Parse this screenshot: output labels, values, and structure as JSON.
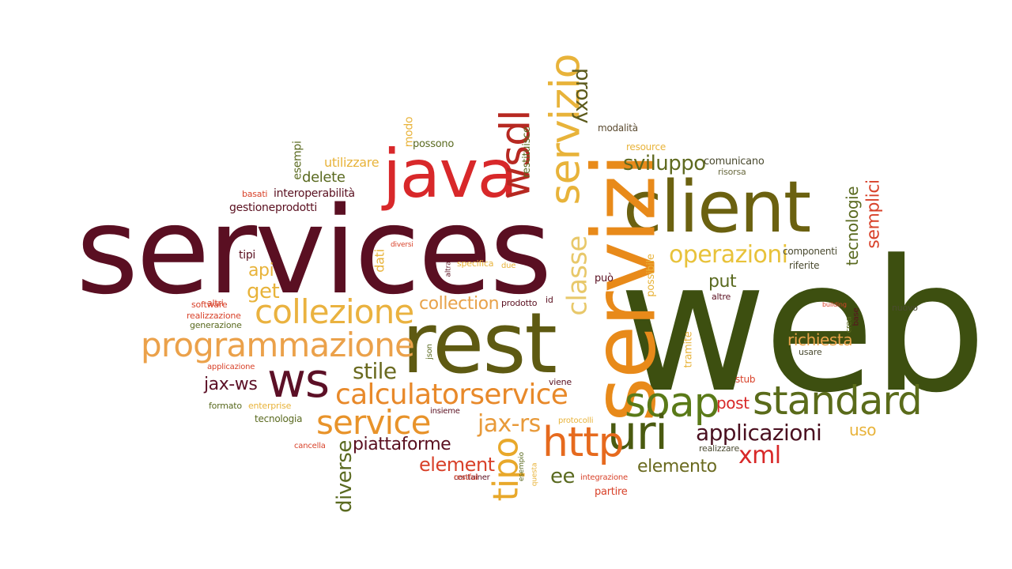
{
  "words": [
    {
      "text": "web",
      "color": "#3d4f10"
    },
    {
      "text": "services",
      "color": "#5a0f22"
    },
    {
      "text": "rest",
      "color": "#5e5a12"
    },
    {
      "text": "client",
      "color": "#6b6110"
    },
    {
      "text": "java",
      "color": "#d8282a"
    },
    {
      "text": "servizi",
      "color": "#e88a1a"
    },
    {
      "text": "servizio",
      "color": "#e8b33a"
    },
    {
      "text": "wsdl",
      "color": "#b62821"
    },
    {
      "text": "proxy",
      "color": "#5c5a1c"
    },
    {
      "text": "ws",
      "color": "#5c1026"
    },
    {
      "text": "programmazione",
      "color": "#eba14a"
    },
    {
      "text": "collezione",
      "color": "#eab23f"
    },
    {
      "text": "calculatorservice",
      "color": "#e8892a"
    },
    {
      "text": "standard",
      "color": "#5a6b1a"
    },
    {
      "text": "soap",
      "color": "#5a7a18"
    },
    {
      "text": "uri",
      "color": "#4a5a10"
    },
    {
      "text": "http",
      "color": "#e66a1e"
    },
    {
      "text": "tipo",
      "color": "#e8a82a"
    },
    {
      "text": "service",
      "color": "#e8932a"
    },
    {
      "text": "classe",
      "color": "#e8c86a"
    },
    {
      "text": "operazioni",
      "color": "#e8c23a"
    },
    {
      "text": "sviluppo",
      "color": "#5f6a20"
    },
    {
      "text": "stile",
      "color": "#6a6a20"
    },
    {
      "text": "jax-rs",
      "color": "#e89a3a"
    },
    {
      "text": "applicazioni",
      "color": "#4a1020"
    },
    {
      "text": "xml",
      "color": "#d82828"
    },
    {
      "text": "element",
      "color": "#d8412a"
    },
    {
      "text": "collection",
      "color": "#e8a24a"
    },
    {
      "text": "piattaforme",
      "color": "#5a1020"
    },
    {
      "text": "diverse",
      "color": "#5a6a20"
    },
    {
      "text": "elemento",
      "color": "#6a6a20"
    },
    {
      "text": "richiesta",
      "color": "#e8a24a"
    },
    {
      "text": "semplici",
      "color": "#d8422a"
    },
    {
      "text": "tecnologie",
      "color": "#5a6a20"
    },
    {
      "text": "ee",
      "color": "#5a6a20"
    },
    {
      "text": "jax-ws",
      "color": "#5c1026"
    },
    {
      "text": "get",
      "color": "#e8b33a"
    },
    {
      "text": "api",
      "color": "#e8b33a"
    },
    {
      "text": "put",
      "color": "#5a6a20"
    },
    {
      "text": "post",
      "color": "#d82828"
    },
    {
      "text": "uso",
      "color": "#e8b33a"
    },
    {
      "text": "delete",
      "color": "#5a6a20"
    },
    {
      "text": "utilizzare",
      "color": "#e8b33a"
    },
    {
      "text": "esempi",
      "color": "#5a6a20"
    },
    {
      "text": "modo",
      "color": "#e8b33a"
    },
    {
      "text": "possono",
      "color": "#5a6a20"
    },
    {
      "text": "restituisce",
      "color": "#5a6a20"
    },
    {
      "text": "modalità",
      "color": "#5a4a30"
    },
    {
      "text": "resource",
      "color": "#e8b33a"
    },
    {
      "text": "comunicano",
      "color": "#4a4a30"
    },
    {
      "text": "risorsa",
      "color": "#6a6a40"
    },
    {
      "text": "componenti",
      "color": "#4a4a30"
    },
    {
      "text": "riferite",
      "color": "#4a4a30"
    },
    {
      "text": "interoperabilità",
      "color": "#5a1020"
    },
    {
      "text": "gestioneprodotti",
      "color": "#5a1020"
    },
    {
      "text": "basati",
      "color": "#d8422a"
    },
    {
      "text": "tipi",
      "color": "#5a1020"
    },
    {
      "text": "dati",
      "color": "#e8b33a"
    },
    {
      "text": "diversi",
      "color": "#d8422a"
    },
    {
      "text": "altra",
      "color": "#5a1020"
    },
    {
      "text": "specifica",
      "color": "#e8b33a"
    },
    {
      "text": "due",
      "color": "#e8b33a"
    },
    {
      "text": "può",
      "color": "#5a1020"
    },
    {
      "text": "possibile",
      "color": "#e8b33a"
    },
    {
      "text": "altri",
      "color": "#d8422a"
    },
    {
      "text": "software",
      "color": "#d8422a"
    },
    {
      "text": "realizzazione",
      "color": "#d8422a"
    },
    {
      "text": "generazione",
      "color": "#5a6a20"
    },
    {
      "text": "prodotto",
      "color": "#5a1020"
    },
    {
      "text": "id",
      "color": "#5a1020"
    },
    {
      "text": "altre",
      "color": "#5a1020"
    },
    {
      "text": "building",
      "color": "#d8422a"
    },
    {
      "text": "crea",
      "color": "#5a6a20"
    },
    {
      "text": "base",
      "color": "#5a1020"
    },
    {
      "text": "nuovo",
      "color": "#4a4a30"
    },
    {
      "text": "usare",
      "color": "#4a4a30"
    },
    {
      "text": "tramite",
      "color": "#e8b33a"
    },
    {
      "text": "json",
      "color": "#5a6a20"
    },
    {
      "text": "applicazione",
      "color": "#d8422a"
    },
    {
      "text": "viene",
      "color": "#5a1020"
    },
    {
      "text": "stub",
      "color": "#d8422a"
    },
    {
      "text": "formato",
      "color": "#5a6a20"
    },
    {
      "text": "enterprise",
      "color": "#e8b33a"
    },
    {
      "text": "tecnologia",
      "color": "#5a6a20"
    },
    {
      "text": "insieme",
      "color": "#5a1020"
    },
    {
      "text": "container",
      "color": "#5a1020"
    },
    {
      "text": "protocolli",
      "color": "#e8b33a"
    },
    {
      "text": "realizzare",
      "color": "#4a4a30"
    },
    {
      "text": "cancella",
      "color": "#d8422a"
    },
    {
      "text": "esempio",
      "color": "#5a6a20"
    },
    {
      "text": "restful",
      "color": "#d8422a"
    },
    {
      "text": "questa",
      "color": "#e8b33a"
    },
    {
      "text": "integrazione",
      "color": "#d8422a"
    },
    {
      "text": "partire",
      "color": "#d8422a"
    }
  ]
}
